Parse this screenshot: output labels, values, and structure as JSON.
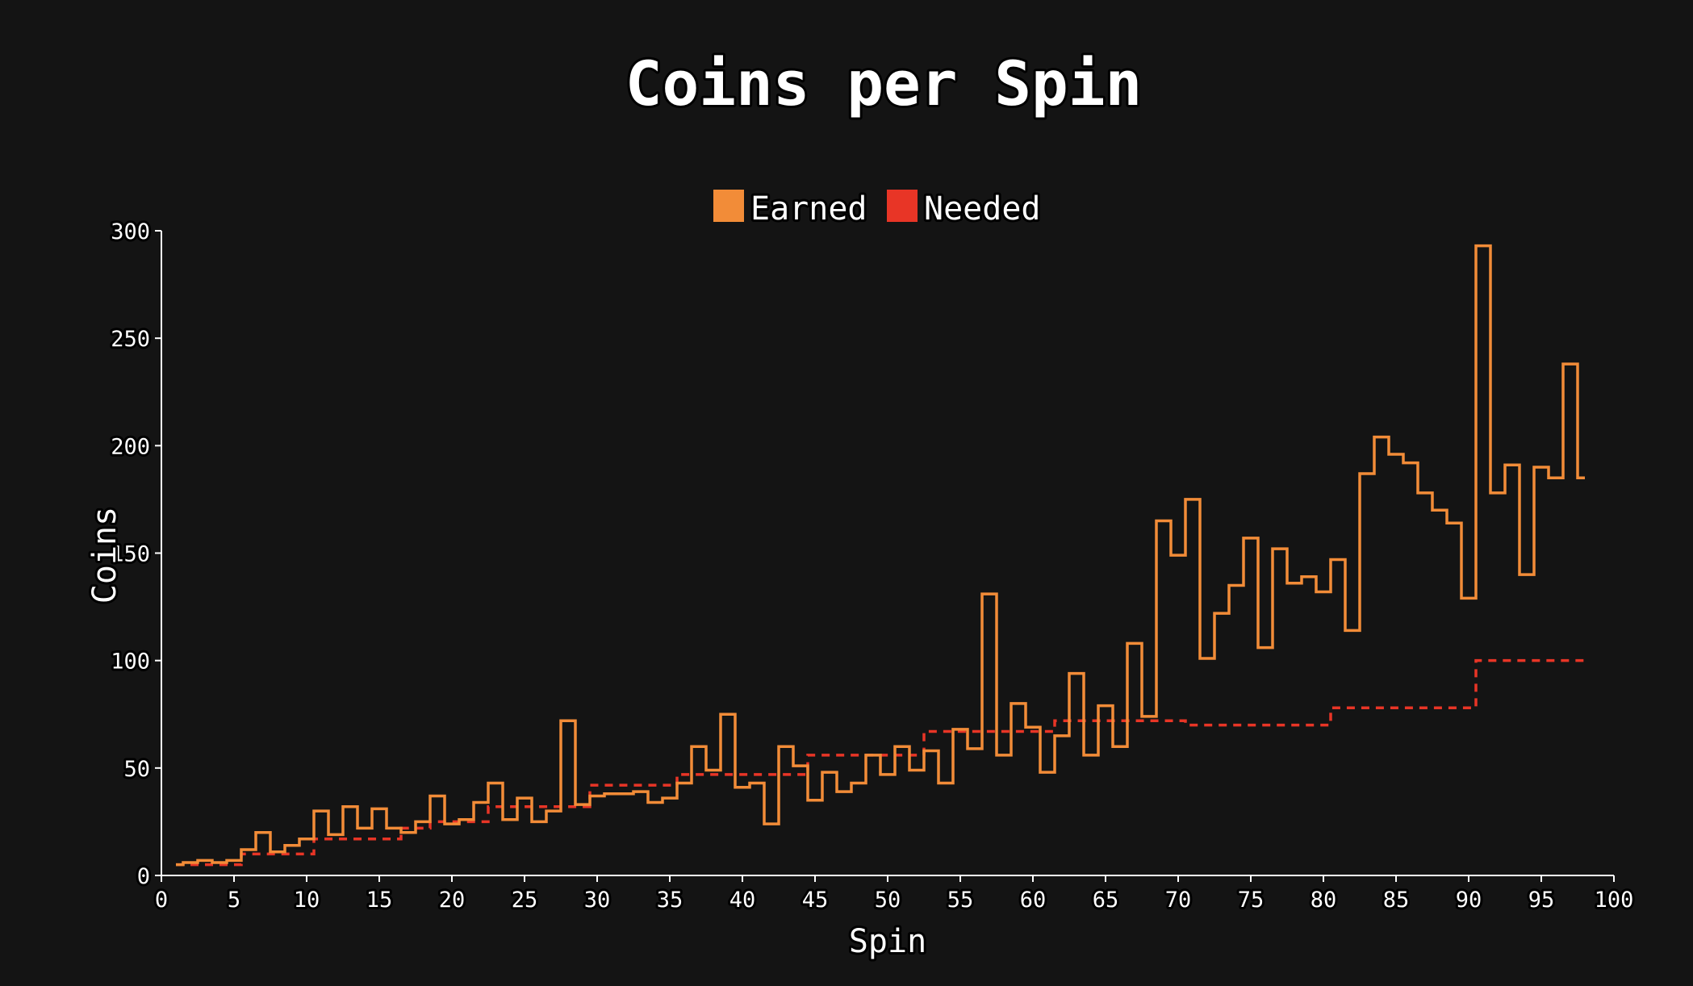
{
  "chart_data": {
    "type": "line",
    "title": "Coins per Spin",
    "xlabel": "Spin",
    "ylabel": "Coins",
    "xlim": [
      0,
      100
    ],
    "ylim": [
      0,
      300
    ],
    "x_ticks": [
      0,
      5,
      10,
      15,
      20,
      25,
      30,
      35,
      40,
      45,
      50,
      55,
      60,
      65,
      70,
      75,
      80,
      85,
      90,
      95,
      100
    ],
    "y_ticks": [
      0,
      50,
      100,
      150,
      200,
      250,
      300
    ],
    "grid": false,
    "legend_position": "top-center",
    "step_style": "step-mid",
    "x": [
      1,
      2,
      3,
      4,
      5,
      6,
      7,
      8,
      9,
      10,
      11,
      12,
      13,
      14,
      15,
      16,
      17,
      18,
      19,
      20,
      21,
      22,
      23,
      24,
      25,
      26,
      27,
      28,
      29,
      30,
      31,
      32,
      33,
      34,
      35,
      36,
      37,
      38,
      39,
      40,
      41,
      42,
      43,
      44,
      45,
      46,
      47,
      48,
      49,
      50,
      51,
      52,
      53,
      54,
      55,
      56,
      57,
      58,
      59,
      60,
      61,
      62,
      63,
      64,
      65,
      66,
      67,
      68,
      69,
      70,
      71,
      72,
      73,
      74,
      75,
      76,
      77,
      78,
      79,
      80,
      81,
      82,
      83,
      84,
      85,
      86,
      87,
      88,
      89,
      90,
      91,
      92,
      93,
      94,
      95,
      96,
      97,
      98
    ],
    "series": [
      {
        "name": "Earned",
        "color": "#f28c38",
        "style": "solid",
        "values": [
          5,
          6,
          7,
          6,
          7,
          12,
          20,
          11,
          14,
          17,
          30,
          19,
          32,
          22,
          31,
          22,
          20,
          25,
          37,
          24,
          26,
          34,
          43,
          26,
          36,
          25,
          30,
          72,
          33,
          37,
          38,
          38,
          39,
          34,
          36,
          43,
          60,
          49,
          75,
          41,
          43,
          24,
          60,
          51,
          35,
          48,
          39,
          43,
          56,
          47,
          60,
          49,
          58,
          43,
          68,
          59,
          131,
          56,
          80,
          69,
          48,
          65,
          94,
          56,
          79,
          60,
          108,
          74,
          165,
          149,
          175,
          101,
          122,
          135,
          157,
          106,
          152,
          136,
          139,
          132,
          147,
          114,
          187,
          204,
          196,
          192,
          178,
          170,
          164,
          129,
          293,
          178,
          191,
          140,
          190,
          185,
          238,
          185
        ]
      },
      {
        "name": "Needed",
        "color": "#e83526",
        "style": "dashed",
        "values": [
          5,
          5,
          5,
          5,
          5,
          10,
          10,
          10,
          10,
          10,
          17,
          17,
          17,
          17,
          17,
          17,
          22,
          22,
          25,
          25,
          25,
          25,
          32,
          32,
          32,
          32,
          32,
          32,
          32,
          42,
          42,
          42,
          42,
          42,
          42,
          47,
          47,
          47,
          47,
          47,
          47,
          47,
          47,
          47,
          56,
          56,
          56,
          56,
          56,
          56,
          56,
          56,
          67,
          67,
          67,
          67,
          67,
          67,
          67,
          67,
          67,
          72,
          72,
          72,
          72,
          72,
          72,
          72,
          72,
          72,
          70,
          70,
          70,
          70,
          70,
          70,
          70,
          70,
          70,
          70,
          78,
          78,
          78,
          78,
          78,
          78,
          78,
          78,
          78,
          78,
          100,
          100,
          100,
          100,
          100,
          100,
          100,
          100
        ]
      }
    ]
  }
}
